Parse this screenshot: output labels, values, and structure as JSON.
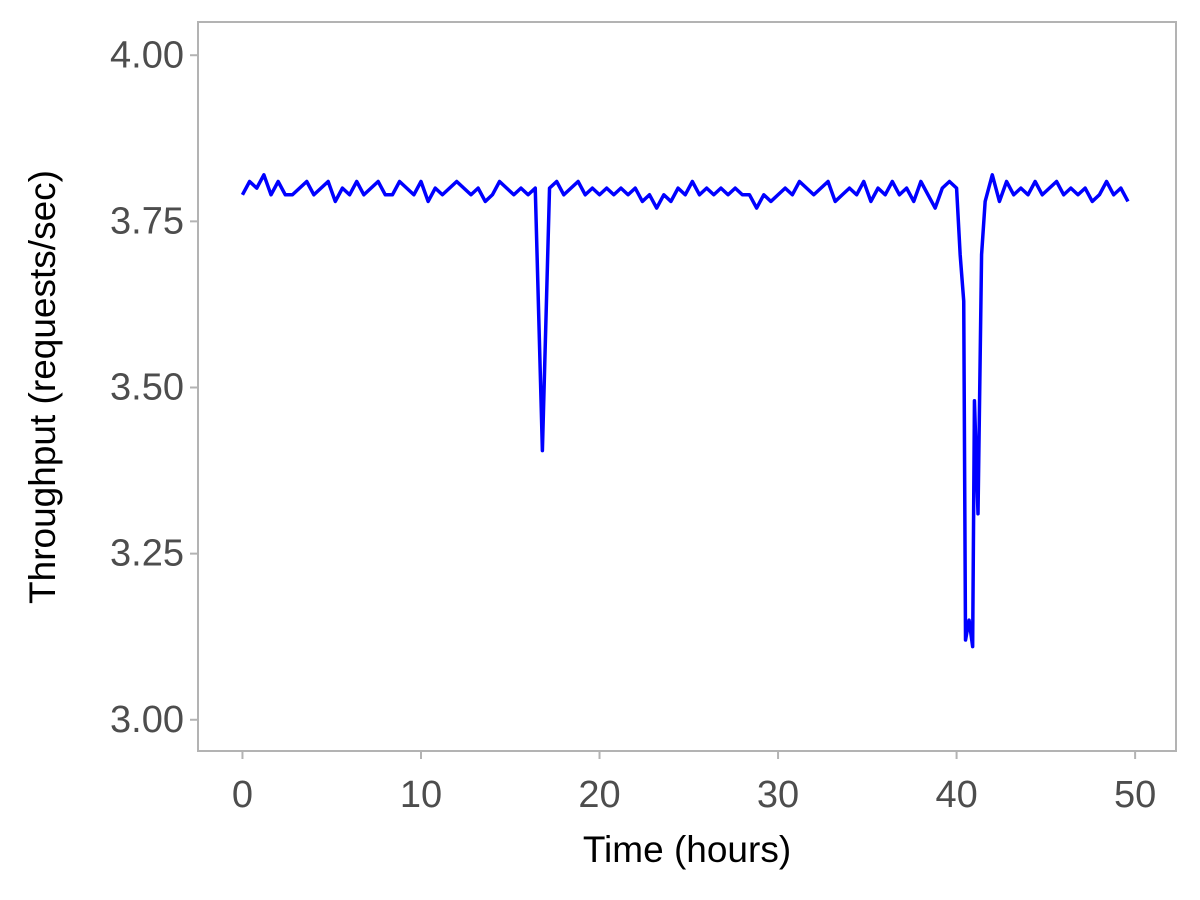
{
  "chart_data": {
    "type": "line",
    "x_label": "Time (hours)",
    "y_label": "Throughput (requests/sec)",
    "xlim": [
      -2.49,
      52.29
    ],
    "ylim": [
      2.953,
      4.05
    ],
    "xticks": [
      0,
      10,
      20,
      30,
      40,
      50
    ],
    "yticks": [
      {
        "value": 3,
        "label": "3.00"
      },
      3.25,
      {
        "value": 3.5,
        "label": "3.50"
      },
      3.75,
      {
        "value": 4,
        "label": "4.00"
      }
    ],
    "grid": false,
    "series": [
      {
        "color": "#0000ff",
        "x": [
          0,
          0.4,
          0.8,
          1.2,
          1.6,
          2,
          2.4,
          2.8,
          3.2,
          3.6,
          4,
          4.4,
          4.8,
          5.2,
          5.6,
          6,
          6.4,
          6.8,
          7.2,
          7.6,
          8,
          8.4,
          8.8,
          9.2,
          9.6,
          10,
          10.4,
          10.8,
          11.2,
          11.6,
          12,
          12.4,
          12.8,
          13.2,
          13.6,
          14,
          14.4,
          14.8,
          15.2,
          15.6,
          16,
          16.4,
          16.8,
          17.2,
          17.6,
          18,
          18.4,
          18.8,
          19.2,
          19.6,
          20,
          20.4,
          20.8,
          21.2,
          21.6,
          22,
          22.4,
          22.8,
          23.2,
          23.6,
          24,
          24.4,
          24.8,
          25.2,
          25.6,
          26,
          26.4,
          26.8,
          27.2,
          27.6,
          28,
          28.4,
          28.8,
          29.2,
          29.6,
          30,
          30.4,
          30.8,
          31.2,
          31.6,
          32,
          32.4,
          32.8,
          33.2,
          33.6,
          34,
          34.4,
          34.8,
          35.2,
          35.6,
          36,
          36.4,
          36.8,
          37.2,
          37.6,
          38,
          38.4,
          38.8,
          39.2,
          39.6,
          40,
          40.2,
          40.4,
          40.5,
          40.7,
          40.9,
          41,
          41.2,
          41.4,
          41.6,
          42,
          42.4,
          42.8,
          43.2,
          43.6,
          44,
          44.4,
          44.8,
          45.2,
          45.6,
          46,
          46.4,
          46.8,
          47.2,
          47.6,
          48,
          48.4,
          48.8,
          49.2,
          49.6
        ],
        "values": [
          3.79,
          3.81,
          3.8,
          3.82,
          3.79,
          3.81,
          3.79,
          3.79,
          3.8,
          3.81,
          3.79,
          3.8,
          3.81,
          3.78,
          3.8,
          3.79,
          3.81,
          3.79,
          3.8,
          3.81,
          3.79,
          3.79,
          3.81,
          3.8,
          3.79,
          3.81,
          3.78,
          3.8,
          3.79,
          3.8,
          3.81,
          3.8,
          3.79,
          3.8,
          3.78,
          3.79,
          3.81,
          3.8,
          3.79,
          3.8,
          3.79,
          3.8,
          3.405,
          3.8,
          3.81,
          3.79,
          3.8,
          3.81,
          3.79,
          3.8,
          3.79,
          3.8,
          3.79,
          3.8,
          3.79,
          3.8,
          3.78,
          3.79,
          3.77,
          3.79,
          3.78,
          3.8,
          3.79,
          3.81,
          3.79,
          3.8,
          3.79,
          3.8,
          3.79,
          3.8,
          3.79,
          3.79,
          3.77,
          3.79,
          3.78,
          3.79,
          3.8,
          3.79,
          3.81,
          3.8,
          3.79,
          3.8,
          3.81,
          3.78,
          3.79,
          3.8,
          3.79,
          3.81,
          3.78,
          3.8,
          3.79,
          3.81,
          3.79,
          3.8,
          3.78,
          3.81,
          3.79,
          3.77,
          3.8,
          3.81,
          3.8,
          3.7,
          3.63,
          3.12,
          3.15,
          3.11,
          3.48,
          3.31,
          3.7,
          3.78,
          3.82,
          3.78,
          3.81,
          3.79,
          3.8,
          3.79,
          3.81,
          3.79,
          3.8,
          3.81,
          3.79,
          3.8,
          3.79,
          3.8,
          3.78,
          3.79,
          3.81,
          3.79,
          3.8,
          3.78
        ]
      }
    ]
  }
}
